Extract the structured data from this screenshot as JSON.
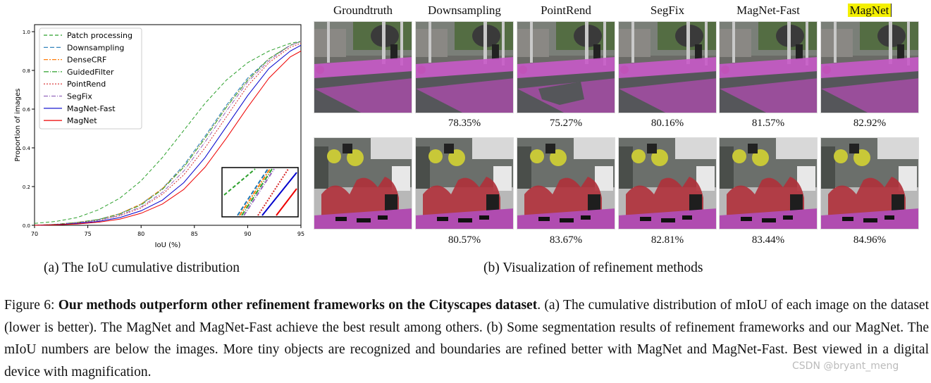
{
  "chart_data": {
    "type": "line",
    "xlabel": "IoU (%)",
    "ylabel": "Proportion of images",
    "xlim": [
      70,
      95
    ],
    "ylim": [
      0,
      1.0
    ],
    "xticks": [
      "70",
      "75",
      "80",
      "85",
      "90",
      "95"
    ],
    "yticks": [
      "0.0",
      "0.2",
      "0.4",
      "0.6",
      "0.8",
      "1.0"
    ],
    "legend_position": "top-left",
    "inset": "zoomed view, bottom-right",
    "series": [
      {
        "name": "Patch processing",
        "color": "#2ca02c",
        "dash": "5,3",
        "x": [
          70,
          72,
          74,
          76,
          78,
          80,
          82,
          84,
          86,
          88,
          90,
          92,
          94,
          95
        ],
        "y": [
          0.01,
          0.02,
          0.04,
          0.08,
          0.14,
          0.23,
          0.35,
          0.49,
          0.63,
          0.75,
          0.84,
          0.9,
          0.94,
          0.95
        ]
      },
      {
        "name": "Downsampling",
        "color": "#1f77b4",
        "dash": "6,3",
        "x": [
          70,
          72,
          74,
          76,
          78,
          80,
          82,
          84,
          86,
          88,
          90,
          92,
          94,
          95
        ],
        "y": [
          0.0,
          0.005,
          0.015,
          0.03,
          0.06,
          0.11,
          0.19,
          0.31,
          0.46,
          0.62,
          0.76,
          0.86,
          0.93,
          0.95
        ]
      },
      {
        "name": "DenseCRF",
        "color": "#ff7f0e",
        "dash": "6,2,2,2",
        "x": [
          70,
          72,
          74,
          76,
          78,
          80,
          82,
          84,
          86,
          88,
          90,
          92,
          94,
          95
        ],
        "y": [
          0.0,
          0.005,
          0.015,
          0.03,
          0.06,
          0.11,
          0.19,
          0.3,
          0.45,
          0.61,
          0.75,
          0.86,
          0.93,
          0.95
        ]
      },
      {
        "name": "GuidedFilter",
        "color": "#2ca02c",
        "dash": "7,2,1,2",
        "x": [
          70,
          72,
          74,
          76,
          78,
          80,
          82,
          84,
          86,
          88,
          90,
          92,
          94,
          95
        ],
        "y": [
          0.0,
          0.005,
          0.014,
          0.03,
          0.058,
          0.105,
          0.185,
          0.3,
          0.45,
          0.61,
          0.75,
          0.86,
          0.93,
          0.95
        ]
      },
      {
        "name": "PointRend",
        "color": "#d62728",
        "dash": "2,2",
        "x": [
          70,
          72,
          74,
          76,
          78,
          80,
          82,
          84,
          86,
          88,
          90,
          92,
          94,
          95
        ],
        "y": [
          0.0,
          0.004,
          0.012,
          0.025,
          0.05,
          0.09,
          0.16,
          0.26,
          0.4,
          0.56,
          0.72,
          0.84,
          0.92,
          0.94
        ]
      },
      {
        "name": "SegFix",
        "color": "#9467bd",
        "dash": "6,2,1,2",
        "x": [
          70,
          72,
          74,
          76,
          78,
          80,
          82,
          84,
          86,
          88,
          90,
          92,
          94,
          95
        ],
        "y": [
          0.0,
          0.004,
          0.012,
          0.026,
          0.052,
          0.095,
          0.17,
          0.28,
          0.43,
          0.59,
          0.74,
          0.85,
          0.93,
          0.95
        ]
      },
      {
        "name": "MagNet-Fast",
        "color": "#0000cc",
        "dash": "",
        "x": [
          70,
          72,
          74,
          76,
          78,
          80,
          82,
          84,
          86,
          88,
          90,
          92,
          94,
          95
        ],
        "y": [
          0.0,
          0.003,
          0.009,
          0.02,
          0.04,
          0.075,
          0.13,
          0.22,
          0.35,
          0.51,
          0.67,
          0.81,
          0.9,
          0.93
        ]
      },
      {
        "name": "MagNet",
        "color": "#ee0000",
        "dash": "",
        "x": [
          70,
          72,
          74,
          76,
          78,
          80,
          82,
          84,
          86,
          88,
          90,
          92,
          94,
          95
        ],
        "y": [
          0.0,
          0.002,
          0.007,
          0.016,
          0.032,
          0.062,
          0.11,
          0.185,
          0.3,
          0.45,
          0.61,
          0.76,
          0.87,
          0.9
        ]
      }
    ]
  },
  "panel_b": {
    "columns": [
      "Groundtruth",
      "Downsampling",
      "PointRend",
      "SegFix",
      "MagNet-Fast",
      "MagNet"
    ],
    "row1_scores": [
      "",
      "78.35%",
      "75.27%",
      "80.16%",
      "81.57%",
      "82.92%"
    ],
    "row2_scores": [
      "",
      "80.57%",
      "83.67%",
      "82.81%",
      "83.44%",
      "84.96%"
    ]
  },
  "subcaptions": {
    "a": "(a) The IoU cumulative distribution",
    "b": "(b) Visualization of refinement methods"
  },
  "caption": {
    "label": "Figure 6: ",
    "bold": "Our methods outperform other refinement frameworks on the Cityscapes dataset",
    "rest": ". (a) The cumulative distribution of mIoU of each image on the dataset (lower is better). The MagNet and MagNet-Fast achieve the best result among others. (b) Some segmentation results of refinement frameworks and our MagNet.  The mIoU numbers are below the images.  More tiny objects are recognized and boundaries are refined better with MagNet and MagNet-Fast. Best viewed in a digital device with magnification."
  },
  "watermark": "CSDN @bryant_meng",
  "colors": {
    "road": "#b04cb0",
    "sidewalk": "#c85ac8",
    "building": "#6a6a66",
    "vegetation": "#4e6a3a",
    "person": "#b0303a",
    "sign": "#c8c838",
    "highlight": "#f4f000"
  }
}
